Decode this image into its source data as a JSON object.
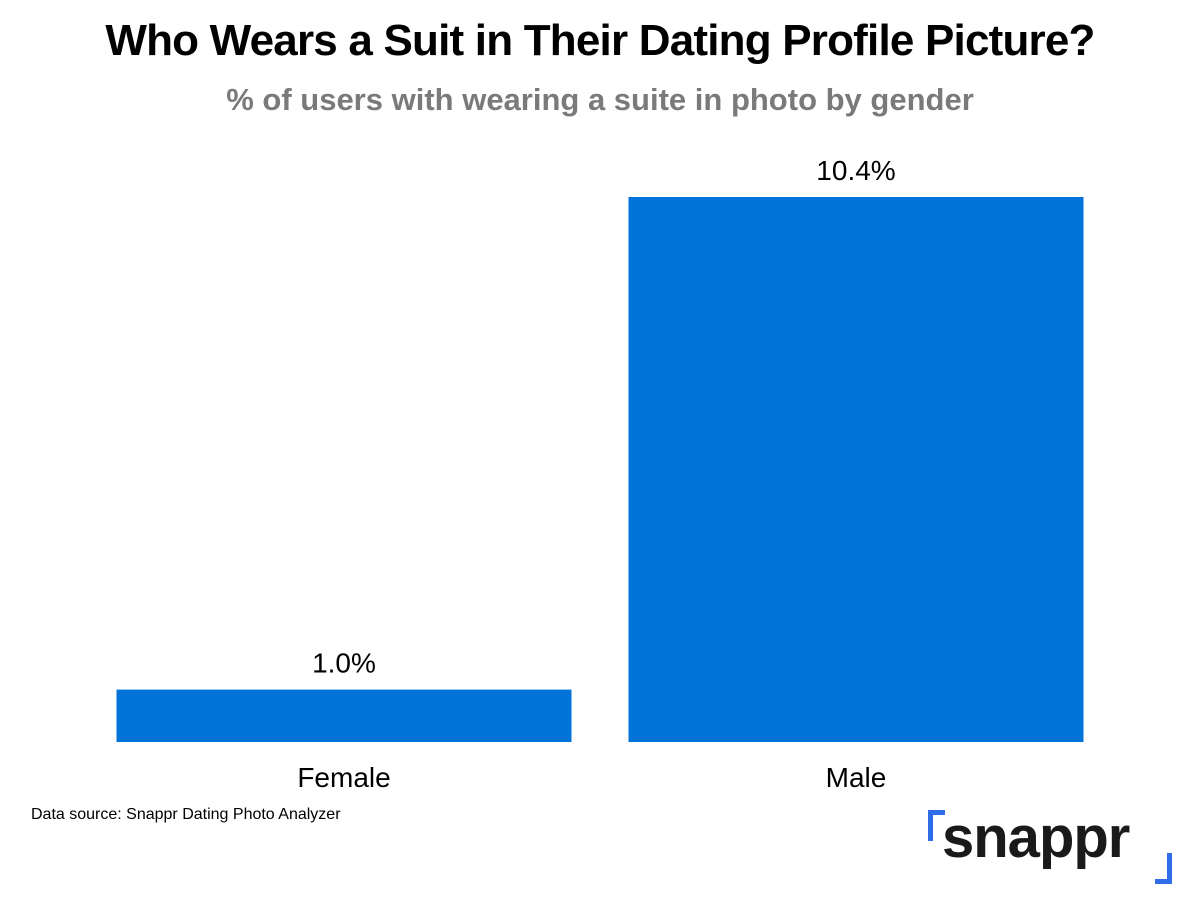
{
  "title": "Who Wears a Suit in Their Dating Profile Picture?",
  "subtitle": "% of users with wearing a suite in photo by gender",
  "source": "Data source: Snappr Dating Photo Analyzer",
  "logo": {
    "text": "snappr",
    "accent_color": "#2f6ee8"
  },
  "colors": {
    "bar": "#0074d9"
  },
  "chart_data": {
    "type": "bar",
    "categories": [
      "Female",
      "Male"
    ],
    "values": [
      1.0,
      10.4
    ],
    "value_labels": [
      "1.0%",
      "10.4%"
    ],
    "title": "Who Wears a Suit in Their Dating Profile Picture?",
    "subtitle": "% of users with wearing a suite in photo by gender",
    "ylim": [
      0,
      10.4
    ],
    "grid": false,
    "legend": "none"
  }
}
